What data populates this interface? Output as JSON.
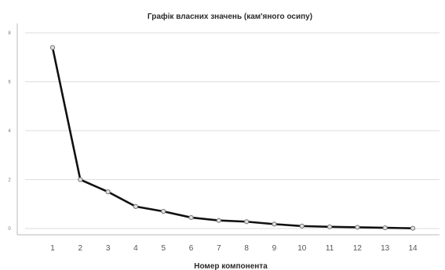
{
  "chart_data": {
    "type": "line",
    "title": "Графік власних значень (кам'яного осипу)",
    "xlabel": "Номер компонента",
    "ylabel": "",
    "x": [
      1,
      2,
      3,
      4,
      5,
      6,
      7,
      8,
      9,
      10,
      11,
      12,
      13,
      14
    ],
    "x_tick_labels": [
      "1",
      "2",
      "3",
      "4",
      "5",
      "6",
      "7",
      "8",
      "9",
      "10",
      "11",
      "12",
      "13",
      "14"
    ],
    "series": [
      {
        "values": [
          7.4,
          2.0,
          1.5,
          0.9,
          0.7,
          0.45,
          0.33,
          0.28,
          0.18,
          0.1,
          0.07,
          0.05,
          0.03,
          0.01
        ]
      }
    ],
    "y_ticks": [
      0,
      2,
      4,
      6,
      8
    ],
    "y_tick_labels": [
      "0",
      "2",
      "4",
      "6",
      "8"
    ],
    "ylim": [
      0,
      8
    ],
    "xlim": [
      0,
      15
    ],
    "grid": true,
    "legend": "none",
    "colors": {
      "line": "#111111",
      "marker_fill": "#e0e0e0",
      "marker_stroke": "#777777",
      "grid": "#dedede",
      "axis": "#bbbbbb"
    }
  }
}
